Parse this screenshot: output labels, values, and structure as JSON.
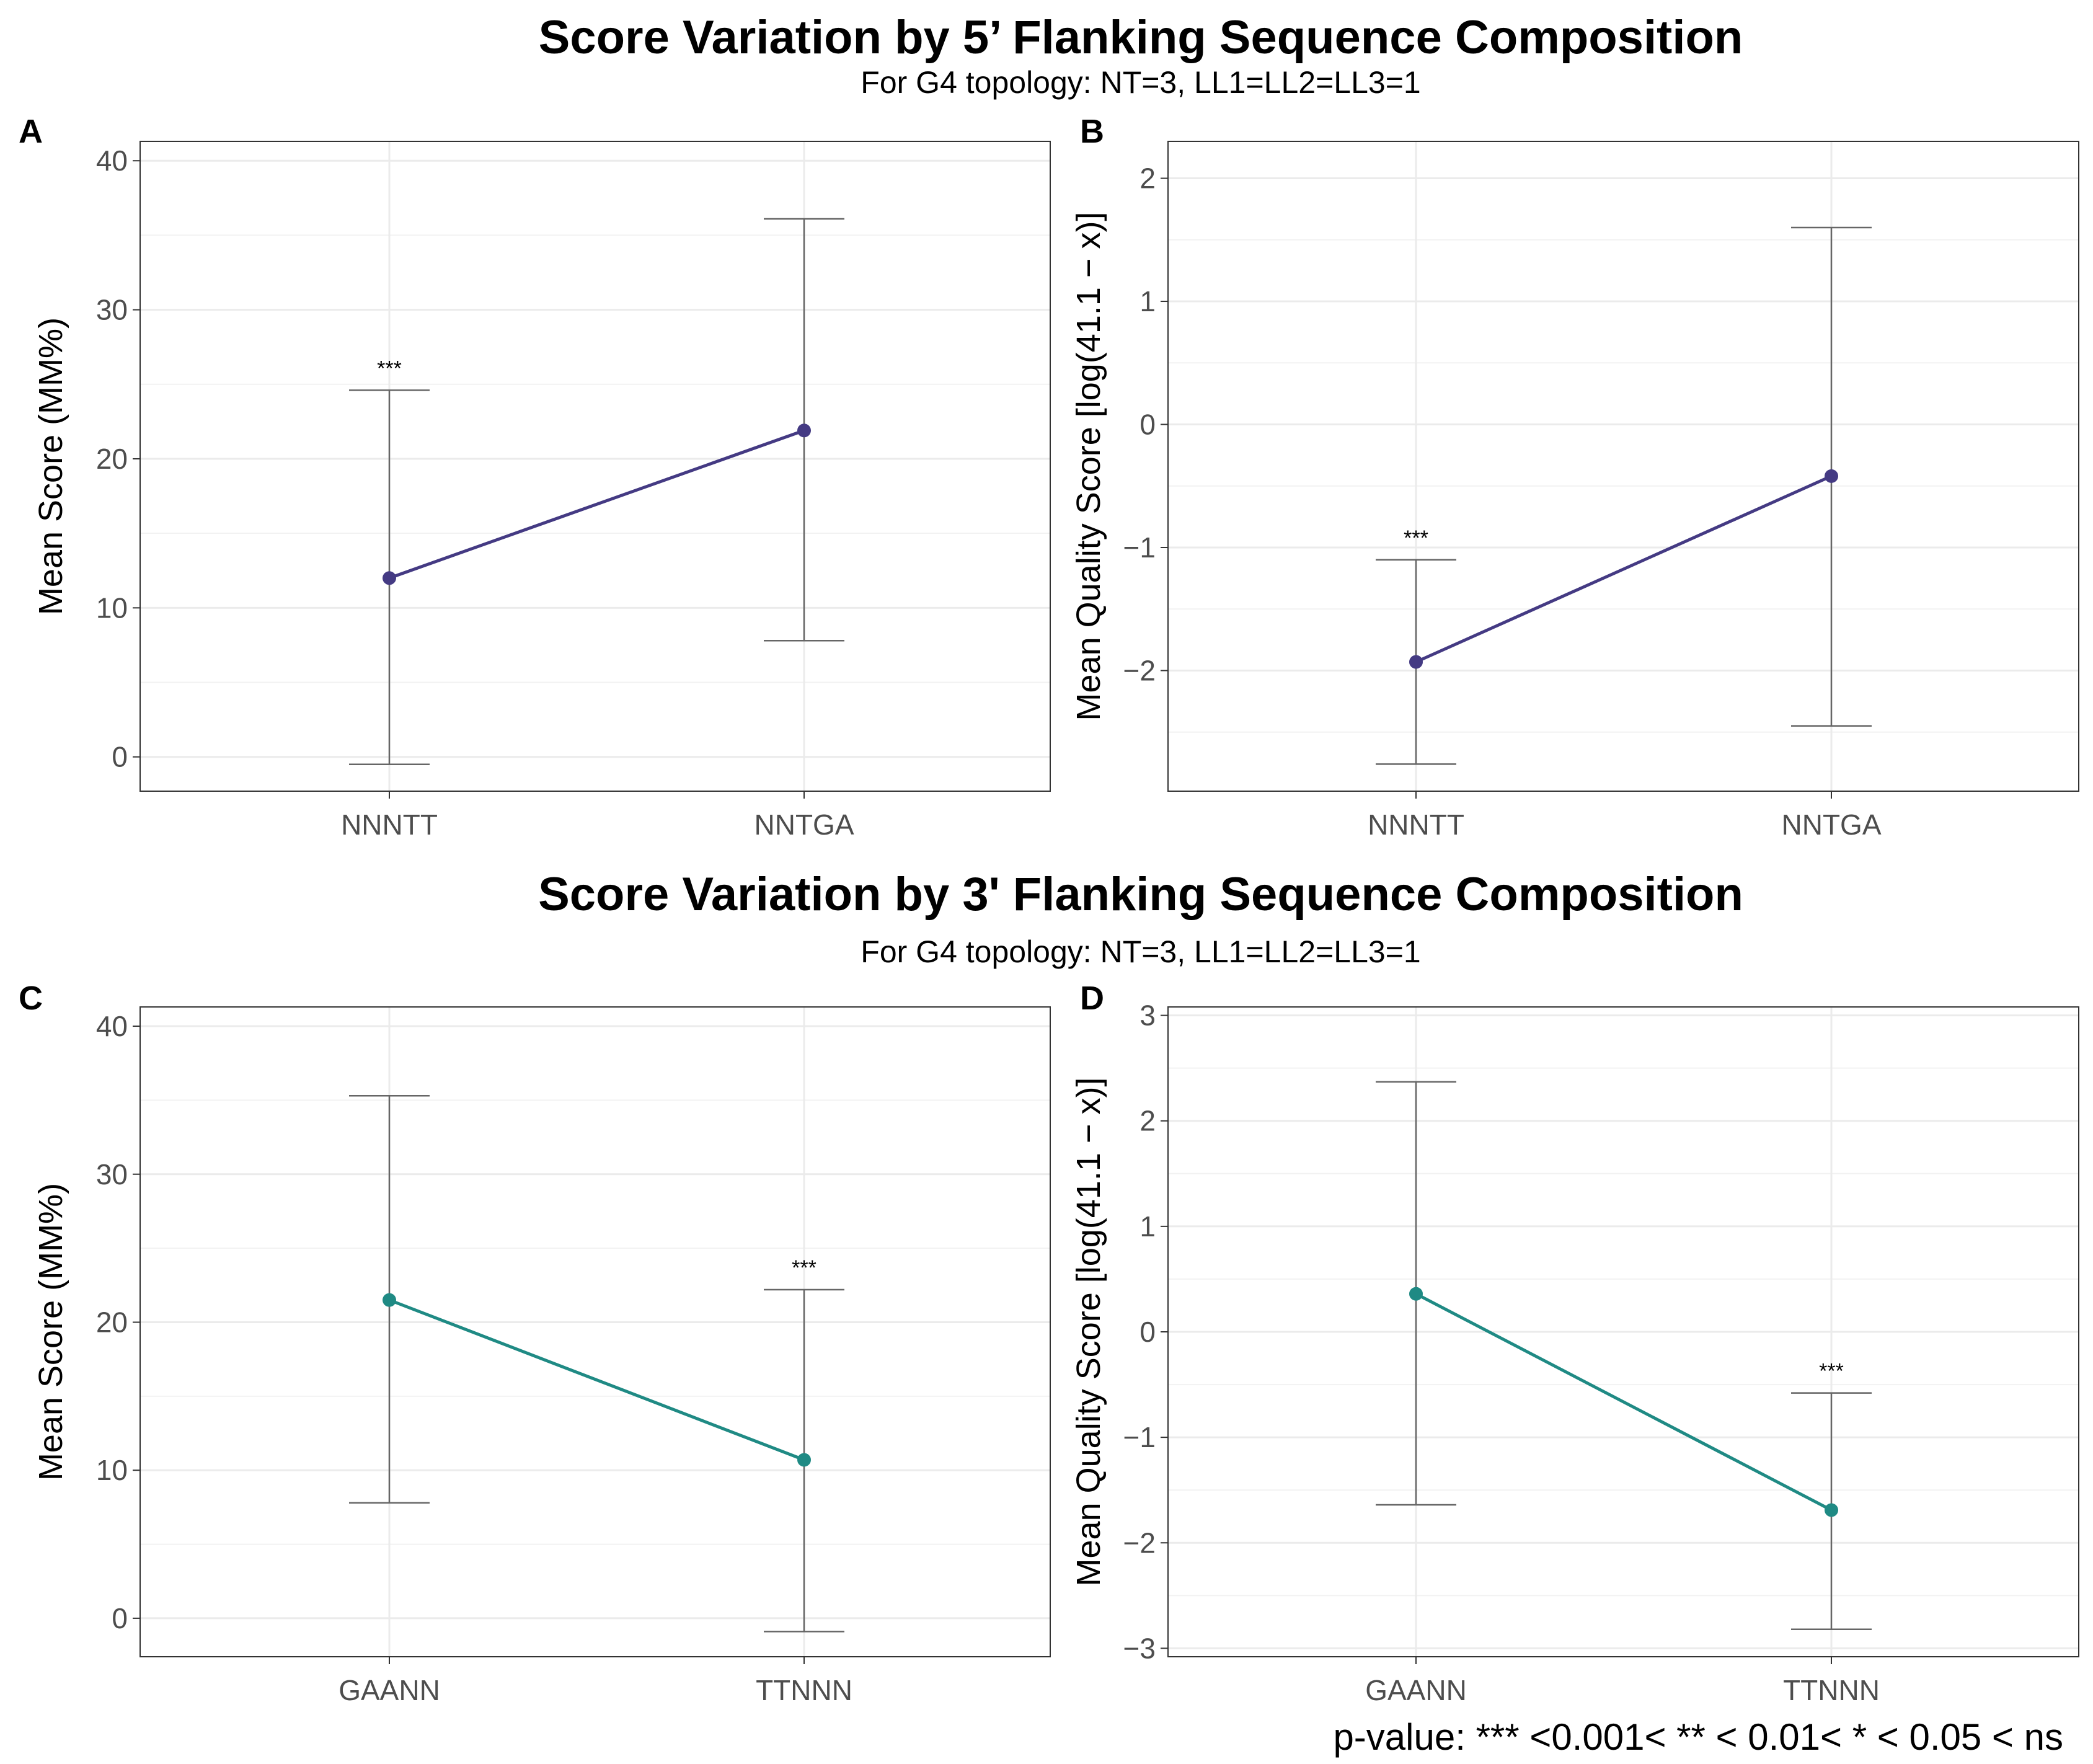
{
  "titles": {
    "top": "Score Variation by 5’ Flanking Sequence Composition",
    "top_subtitle": "For G4 topology: NT=3, LL1=LL2=LL3=1",
    "bottom": "Score Variation by 3' Flanking Sequence Composition",
    "bottom_subtitle": "For G4 topology: NT=3, LL1=LL2=LL3=1"
  },
  "footnote": "p-value: *** <0.001< ** < 0.01< * < 0.05 < ns",
  "colors": {
    "purple": "#443a83",
    "teal": "#1f8a84",
    "grid": "#ebebeb",
    "errorbar": "#666666",
    "border": "#333333"
  },
  "chart_data": [
    {
      "panel": "A",
      "type": "line",
      "categories": [
        "NNNTT",
        "NNTGA"
      ],
      "values": [
        12.0,
        21.9
      ],
      "error_low": [
        -0.5,
        7.8
      ],
      "error_high": [
        24.6,
        36.1
      ],
      "significance": [
        "***",
        ""
      ],
      "ylabel": "Mean Score (MM%)",
      "yticks": [
        0,
        10,
        20,
        30,
        40
      ],
      "ylim": [
        -2.3,
        41.3
      ],
      "color": "purple"
    },
    {
      "panel": "B",
      "type": "line",
      "categories": [
        "NNNTT",
        "NNTGA"
      ],
      "values": [
        -1.93,
        -0.42
      ],
      "error_low": [
        -2.76,
        -2.45
      ],
      "error_high": [
        -1.1,
        1.6
      ],
      "significance": [
        "***",
        ""
      ],
      "ylabel": "Mean Quality Score [log(41.1 − x)]",
      "yticks": [
        -2,
        -1,
        0,
        1,
        2
      ],
      "ylim": [
        -2.98,
        2.3
      ],
      "color": "purple"
    },
    {
      "panel": "C",
      "type": "line",
      "categories": [
        "GAANN",
        "TTNNN"
      ],
      "values": [
        21.5,
        10.7
      ],
      "error_low": [
        7.8,
        -0.9
      ],
      "error_high": [
        35.3,
        22.2
      ],
      "significance": [
        "",
        "***"
      ],
      "ylabel": "Mean Score (MM%)",
      "yticks": [
        0,
        10,
        20,
        30,
        40
      ],
      "ylim": [
        -2.6,
        41.3
      ],
      "color": "teal"
    },
    {
      "panel": "D",
      "type": "line",
      "categories": [
        "GAANN",
        "TTNNN"
      ],
      "values": [
        0.36,
        -1.69
      ],
      "error_low": [
        -1.64,
        -2.82
      ],
      "error_high": [
        2.37,
        -0.58
      ],
      "significance": [
        "",
        "***"
      ],
      "ylabel": "Mean Quality Score [log(41.1 − x)]",
      "yticks": [
        -3,
        -2,
        -1,
        0,
        1,
        2,
        3
      ],
      "ylim": [
        -3.08,
        3.08
      ],
      "color": "teal"
    }
  ]
}
